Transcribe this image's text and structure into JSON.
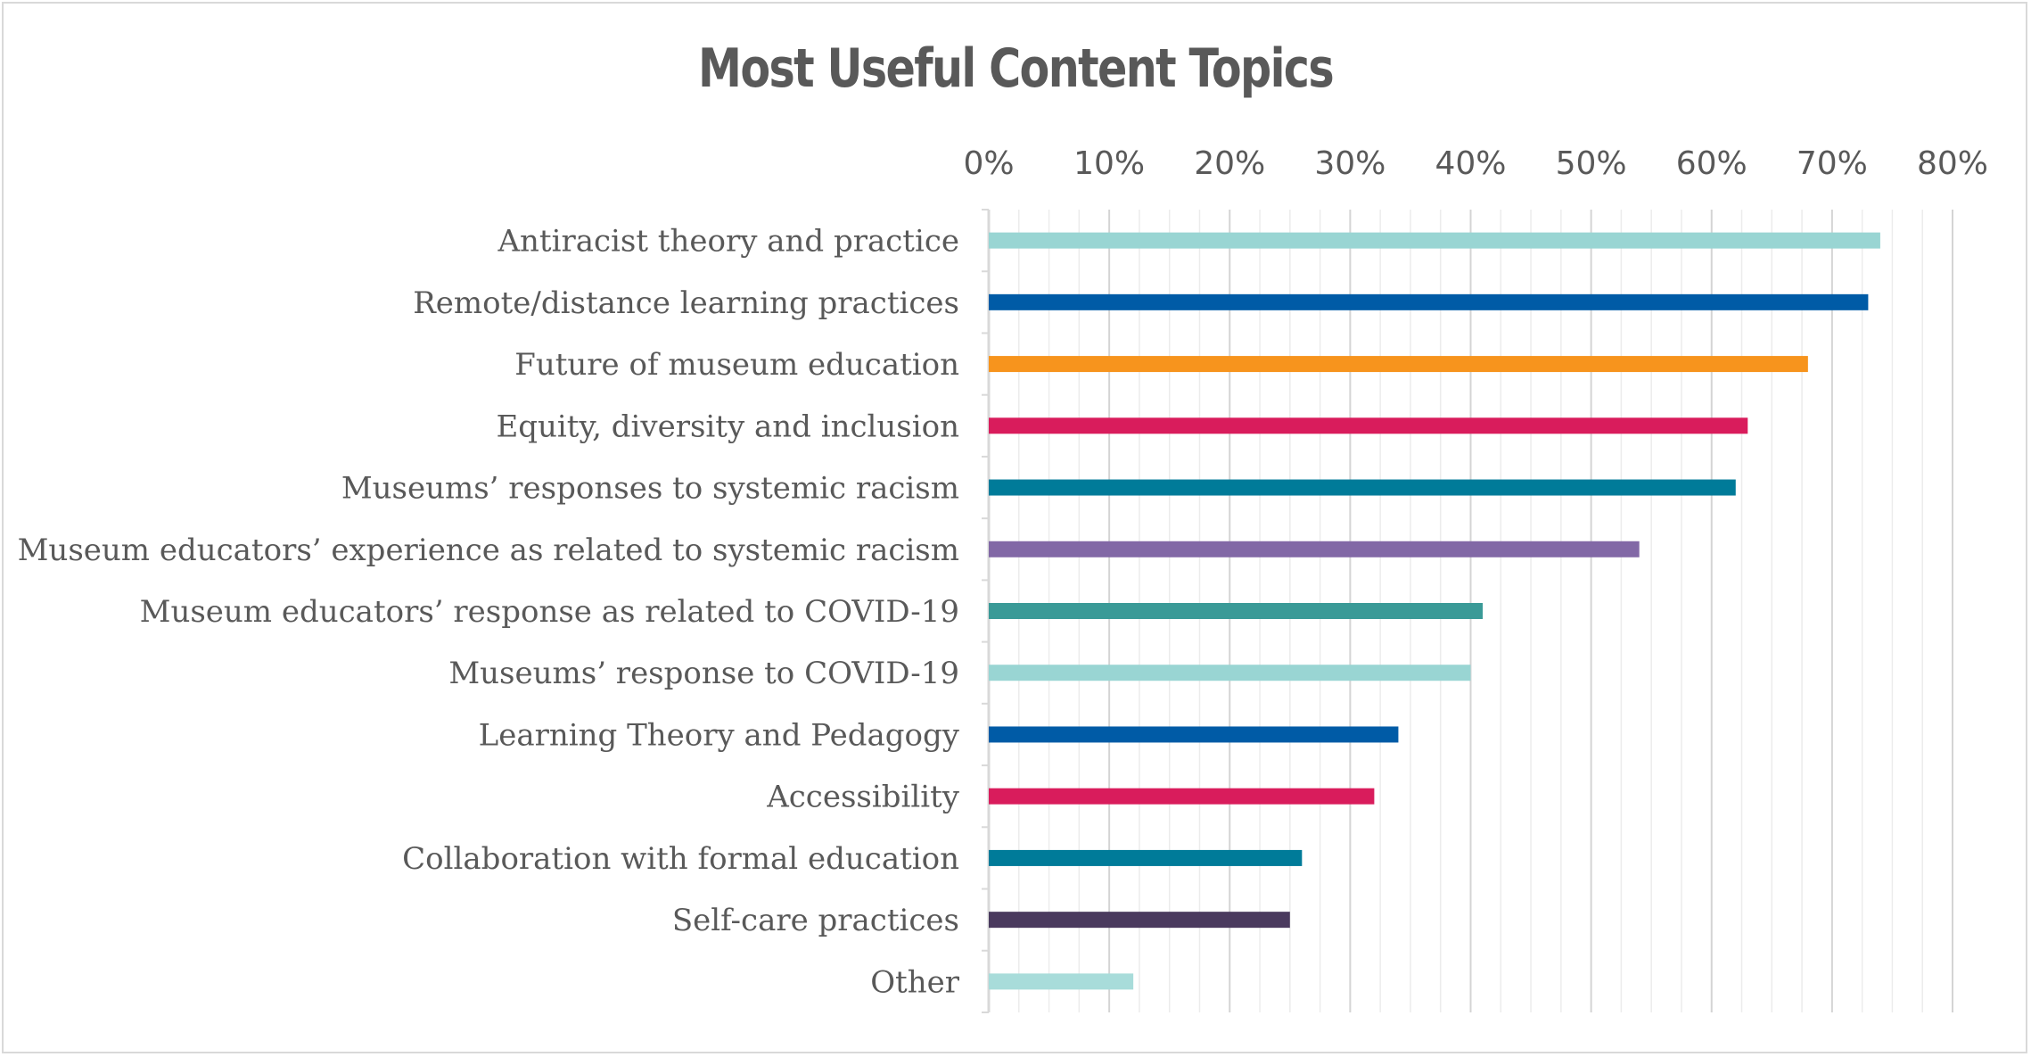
{
  "chart_data": {
    "type": "bar",
    "orientation": "horizontal",
    "title": "Most Useful Content Topics",
    "xlabel": "",
    "ylabel": "",
    "xlim": [
      0,
      80
    ],
    "x_ticks": [
      "0%",
      "10%",
      "20%",
      "30%",
      "40%",
      "50%",
      "60%",
      "70%",
      "80%"
    ],
    "x_axis_position": "top",
    "grid": true,
    "legend": "none",
    "categories": [
      "Antiracist theory and practice",
      "Remote/distance learning practices",
      "Future of museum education",
      "Equity, diversity and inclusion",
      "Museums’ responses to systemic racism",
      "Museum educators’ experience as related to systemic racism",
      "Museum educators’ response as related to COVID-19",
      "Museums’ response to COVID-19",
      "Learning Theory and Pedagogy",
      "Accessibility",
      "Collaboration with formal education",
      "Self-care practices",
      "Other"
    ],
    "values": [
      74,
      73,
      68,
      63,
      62,
      54,
      41,
      40,
      34,
      32,
      26,
      25,
      12
    ],
    "colors": [
      "#99d5d3",
      "#005ba6",
      "#f7941d",
      "#d91c5c",
      "#007b99",
      "#8268a6",
      "#3a9a97",
      "#99d5d3",
      "#005ba6",
      "#d91c5c",
      "#007b99",
      "#4a3a5e",
      "#a8dcda"
    ]
  }
}
